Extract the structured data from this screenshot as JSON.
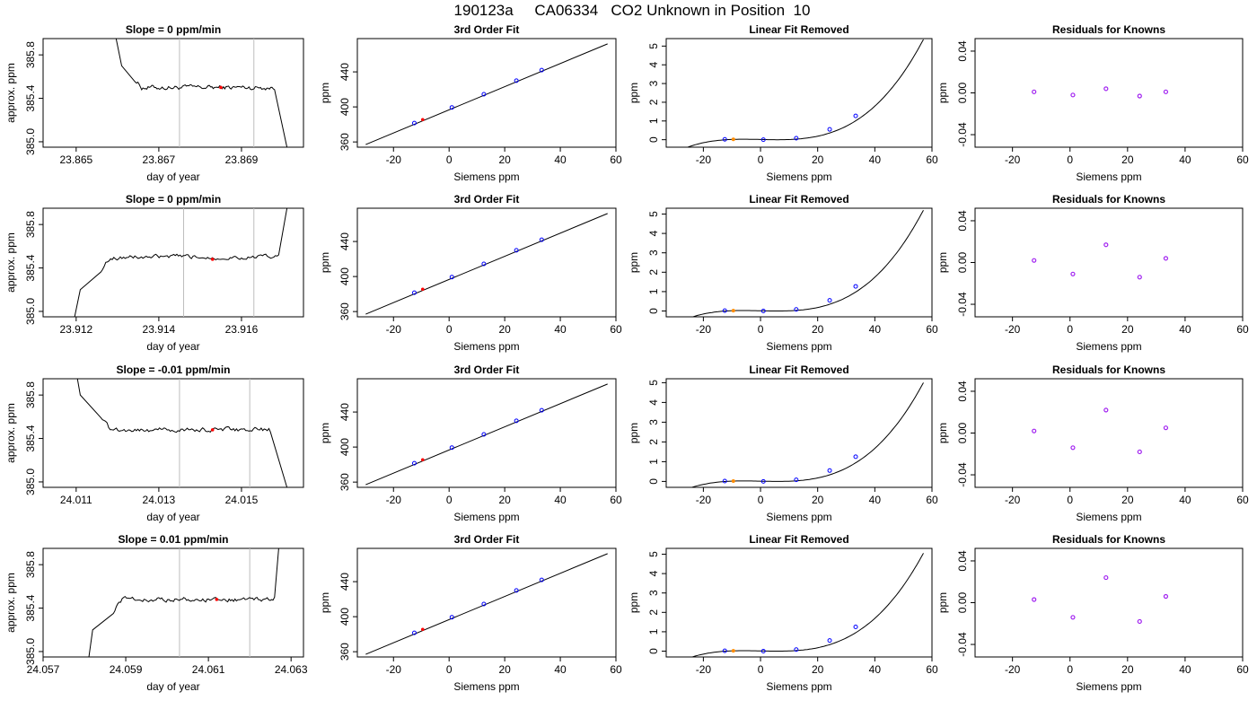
{
  "figure": {
    "title": "190123a     CA06334   CO2 Unknown in Position  10"
  },
  "colors": {
    "line": "#000000",
    "known_point": "#0000ff",
    "unknown_point_left": "#ff0000",
    "unknown_point_fit": "#ff8c00",
    "residual_point": "#a020f0",
    "gridline_vertical": "#bebebe",
    "background": "#ffffff"
  },
  "chart_data": [
    {
      "type": "line",
      "row": 0,
      "title": "Slope =  0  ppm/min",
      "xlabel": "day of year",
      "ylabel": "approx. ppm",
      "xlim": [
        23.8642,
        23.8705
      ],
      "ylim": [
        384.95,
        385.95
      ],
      "xticks": [
        "23.865",
        "23.867",
        "23.869"
      ],
      "yticks": [
        "385.0",
        "385.4",
        "385.8"
      ],
      "vlines": [
        23.8675,
        23.8693
      ],
      "marker": [
        23.8685,
        385.5
      ],
      "trace": {
        "start": 23.8657,
        "rise_start": [
          23.8661,
          385.7
        ],
        "plateau_start": 23.8664,
        "plateau_end": 23.8698,
        "level": 385.5,
        "end": [
          23.8701,
          384.95
        ],
        "pre_end_value": 385.48,
        "direction": "from_high"
      }
    },
    {
      "type": "line",
      "row": 0,
      "title": "3rd Order Fit",
      "xlabel": "Siemens ppm",
      "ylabel": "ppm",
      "xlim": [
        -33,
        60
      ],
      "ylim": [
        354,
        478
      ],
      "xticks": [
        -20,
        0,
        20,
        40,
        60
      ],
      "yticks": [
        360,
        400,
        440
      ],
      "line": {
        "x": [
          -30,
          57
        ],
        "y": [
          357,
          472
        ]
      },
      "knowns": {
        "x": [
          -12.5,
          1,
          12.5,
          24.2,
          33.3
        ],
        "y": [
          381.5,
          399.4,
          414.5,
          430,
          442
        ]
      },
      "unknown": [
        -9.5,
        385.5
      ]
    },
    {
      "type": "line",
      "row": 0,
      "title": "Linear Fit Removed",
      "xlabel": "Siemens ppm",
      "ylabel": "ppm",
      "xlim": [
        -33,
        60
      ],
      "ylim": [
        -0.4,
        5.4
      ],
      "xticks": [
        -20,
        0,
        20,
        40,
        60
      ],
      "yticks": [
        0,
        1,
        2,
        3,
        4,
        5
      ],
      "curve_top": 5.35,
      "knowns": {
        "x": [
          -12.5,
          1,
          12.5,
          24.2,
          33.3
        ],
        "y": [
          0.02,
          0.0,
          0.08,
          0.55,
          1.27
        ]
      },
      "unknown": [
        -9.5,
        0.02
      ]
    },
    {
      "type": "scatter",
      "row": 0,
      "title": "Residuals for Knowns",
      "xlabel": "Siemens ppm",
      "ylabel": "ppm",
      "xlim": [
        -33,
        60
      ],
      "ylim": [
        -0.052,
        0.052
      ],
      "xticks": [
        -20,
        0,
        20,
        40,
        60
      ],
      "yticks": [
        "-0.04",
        "0.00",
        "0.04"
      ],
      "knowns": {
        "x": [
          -12.5,
          1,
          12.5,
          24.2,
          33.3
        ],
        "y": [
          0.001,
          -0.002,
          0.004,
          -0.003,
          0.001
        ]
      }
    },
    {
      "type": "line",
      "row": 1,
      "title": "Slope =  0  ppm/min",
      "xlabel": "day of year",
      "ylabel": "approx. ppm",
      "xlim": [
        23.9112,
        23.9175
      ],
      "ylim": [
        384.95,
        385.95
      ],
      "xticks": [
        "23.912",
        "23.914",
        "23.916"
      ],
      "yticks": [
        "385.0",
        "385.4",
        "385.8"
      ],
      "vlines": [
        23.9146,
        23.9163
      ],
      "marker": [
        23.9153,
        385.48
      ],
      "trace": {
        "start": 23.9118,
        "rise_start": [
          23.9121,
          385.2
        ],
        "plateau_start": 23.9126,
        "plateau_end": 23.9169,
        "level": 385.5,
        "end": [
          23.9171,
          385.95
        ],
        "pre_end_value": 385.52,
        "direction": "from_low"
      }
    },
    {
      "type": "line",
      "row": 1,
      "title": "3rd Order Fit",
      "xlabel": "Siemens ppm",
      "ylabel": "ppm",
      "xlim": [
        -33,
        60
      ],
      "ylim": [
        354,
        478
      ],
      "xticks": [
        -20,
        0,
        20,
        40,
        60
      ],
      "yticks": [
        360,
        400,
        440
      ],
      "line": {
        "x": [
          -30,
          57
        ],
        "y": [
          357,
          472
        ]
      },
      "knowns": {
        "x": [
          -12.5,
          1,
          12.5,
          24.2,
          33.3
        ],
        "y": [
          381.5,
          399.4,
          414.5,
          430,
          442
        ]
      },
      "unknown": [
        -9.5,
        385.5
      ]
    },
    {
      "type": "line",
      "row": 1,
      "title": "Linear Fit Removed",
      "xlabel": "Siemens ppm",
      "ylabel": "ppm",
      "xlim": [
        -33,
        60
      ],
      "ylim": [
        -0.3,
        5.3
      ],
      "xticks": [
        -20,
        0,
        20,
        40,
        60
      ],
      "yticks": [
        0,
        1,
        2,
        3,
        4,
        5
      ],
      "curve_top": 5.2,
      "knowns": {
        "x": [
          -12.5,
          1,
          12.5,
          24.2,
          33.3
        ],
        "y": [
          0.02,
          0.0,
          0.08,
          0.55,
          1.27
        ]
      },
      "unknown": [
        -9.5,
        0.02
      ]
    },
    {
      "type": "scatter",
      "row": 1,
      "title": "Residuals for Knowns",
      "xlabel": "Siemens ppm",
      "ylabel": "ppm",
      "xlim": [
        -33,
        60
      ],
      "ylim": [
        -0.052,
        0.052
      ],
      "xticks": [
        -20,
        0,
        20,
        40,
        60
      ],
      "yticks": [
        "-0.04",
        "0.00",
        "0.04"
      ],
      "knowns": {
        "x": [
          -12.5,
          1,
          12.5,
          24.2,
          33.3
        ],
        "y": [
          0.002,
          -0.011,
          0.017,
          -0.014,
          0.004
        ]
      }
    },
    {
      "type": "line",
      "row": 2,
      "title": "Slope =  -0.01  ppm/min",
      "xlabel": "day of year",
      "ylabel": "approx. ppm",
      "xlim": [
        24.0102,
        24.0165
      ],
      "ylim": [
        384.95,
        385.95
      ],
      "xticks": [
        "24.011",
        "24.013",
        "24.015"
      ],
      "yticks": [
        "385.0",
        "385.4",
        "385.8"
      ],
      "vlines": [
        24.0135,
        24.0152
      ],
      "marker": [
        24.0143,
        385.48
      ],
      "trace": {
        "start": 24.0108,
        "rise_start": [
          24.0111,
          385.8
        ],
        "plateau_start": 24.0116,
        "plateau_end": 24.0157,
        "level": 385.48,
        "end": [
          24.0161,
          384.95
        ],
        "pre_end_value": 385.46,
        "direction": "from_high"
      }
    },
    {
      "type": "line",
      "row": 2,
      "title": "3rd Order Fit",
      "xlabel": "Siemens ppm",
      "ylabel": "ppm",
      "xlim": [
        -33,
        60
      ],
      "ylim": [
        354,
        478
      ],
      "xticks": [
        -20,
        0,
        20,
        40,
        60
      ],
      "yticks": [
        360,
        400,
        440
      ],
      "line": {
        "x": [
          -30,
          57
        ],
        "y": [
          357,
          472
        ]
      },
      "knowns": {
        "x": [
          -12.5,
          1,
          12.5,
          24.2,
          33.3
        ],
        "y": [
          381.5,
          399.4,
          414.5,
          430,
          442
        ]
      },
      "unknown": [
        -9.5,
        385.5
      ]
    },
    {
      "type": "line",
      "row": 2,
      "title": "Linear Fit Removed",
      "xlabel": "Siemens ppm",
      "ylabel": "ppm",
      "xlim": [
        -33,
        60
      ],
      "ylim": [
        -0.3,
        5.2
      ],
      "xticks": [
        -20,
        0,
        20,
        40,
        60
      ],
      "yticks": [
        0,
        1,
        2,
        3,
        4,
        5
      ],
      "curve_top": 5.0,
      "knowns": {
        "x": [
          -12.5,
          1,
          12.5,
          24.2,
          33.3
        ],
        "y": [
          0.02,
          0.0,
          0.08,
          0.55,
          1.25
        ]
      },
      "unknown": [
        -9.5,
        0.02
      ]
    },
    {
      "type": "scatter",
      "row": 2,
      "title": "Residuals for Knowns",
      "xlabel": "Siemens ppm",
      "ylabel": "ppm",
      "xlim": [
        -33,
        60
      ],
      "ylim": [
        -0.052,
        0.052
      ],
      "xticks": [
        -20,
        0,
        20,
        40,
        60
      ],
      "yticks": [
        "-0.04",
        "0.00",
        "0.04"
      ],
      "knowns": {
        "x": [
          -12.5,
          1,
          12.5,
          24.2,
          33.3
        ],
        "y": [
          0.002,
          -0.014,
          0.022,
          -0.018,
          0.005
        ]
      }
    },
    {
      "type": "line",
      "row": 3,
      "title": "Slope =  0.01  ppm/min",
      "xlabel": "day of year",
      "ylabel": "approx. ppm",
      "xlim": [
        24.057,
        24.0633
      ],
      "ylim": [
        384.95,
        385.95
      ],
      "xticks": [
        "24.057",
        "24.059",
        "24.061",
        "24.063"
      ],
      "yticks": [
        "385.0",
        "385.4",
        "385.8"
      ],
      "vlines": [
        24.0603,
        24.062
      ],
      "marker": [
        24.0612,
        385.48
      ],
      "trace": {
        "start": 24.058,
        "rise_start": [
          24.0582,
          385.2
        ],
        "plateau_start": 24.0587,
        "plateau_end": 24.0626,
        "level": 385.48,
        "end": [
          24.0627,
          385.95
        ],
        "pre_end_value": 385.5,
        "direction": "from_low"
      }
    },
    {
      "type": "line",
      "row": 3,
      "title": "3rd Order Fit",
      "xlabel": "Siemens ppm",
      "ylabel": "ppm",
      "xlim": [
        -33,
        60
      ],
      "ylim": [
        354,
        478
      ],
      "xticks": [
        -20,
        0,
        20,
        40,
        60
      ],
      "yticks": [
        360,
        400,
        440
      ],
      "line": {
        "x": [
          -30,
          57
        ],
        "y": [
          357,
          472
        ]
      },
      "knowns": {
        "x": [
          -12.5,
          1,
          12.5,
          24.2,
          33.3
        ],
        "y": [
          381.5,
          399.4,
          414.5,
          430,
          442
        ]
      },
      "unknown": [
        -9.5,
        385.5
      ]
    },
    {
      "type": "line",
      "row": 3,
      "title": "Linear Fit Removed",
      "xlabel": "Siemens ppm",
      "ylabel": "ppm",
      "xlim": [
        -33,
        60
      ],
      "ylim": [
        -0.3,
        5.3
      ],
      "xticks": [
        -20,
        0,
        20,
        40,
        60
      ],
      "yticks": [
        0,
        1,
        2,
        3,
        4,
        5
      ],
      "curve_top": 5.05,
      "knowns": {
        "x": [
          -12.5,
          1,
          12.5,
          24.2,
          33.3
        ],
        "y": [
          0.02,
          0.0,
          0.08,
          0.55,
          1.25
        ]
      },
      "unknown": [
        -9.5,
        0.02
      ]
    },
    {
      "type": "scatter",
      "row": 3,
      "title": "Residuals for Knowns",
      "xlabel": "Siemens ppm",
      "ylabel": "ppm",
      "xlim": [
        -33,
        60
      ],
      "ylim": [
        -0.052,
        0.052
      ],
      "xticks": [
        -20,
        0,
        20,
        40,
        60
      ],
      "yticks": [
        "-0.04",
        "0.00",
        "0.04"
      ],
      "knowns": {
        "x": [
          -12.5,
          1,
          12.5,
          24.2,
          33.3
        ],
        "y": [
          0.003,
          -0.014,
          0.024,
          -0.018,
          0.006
        ]
      }
    }
  ]
}
